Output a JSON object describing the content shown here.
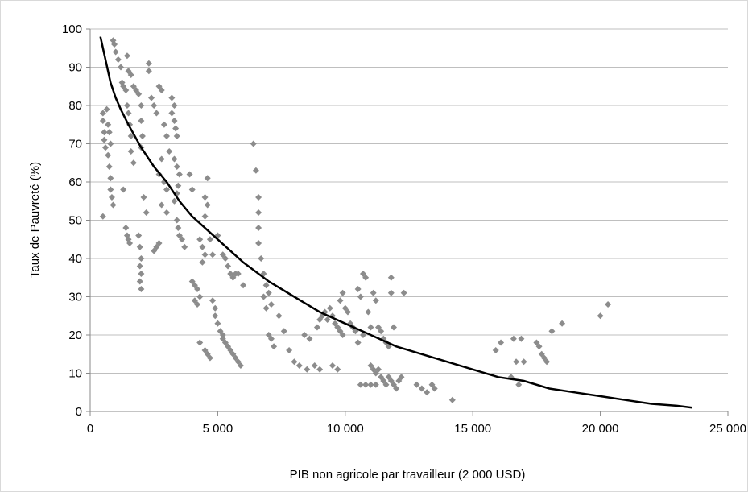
{
  "chart_data": {
    "type": "scatter",
    "title": "",
    "xlabel": "PIB  non agricole par travailleur (2 000 USD)",
    "ylabel": "Taux de Pauvreté (%)",
    "xlim": [
      0,
      25000
    ],
    "ylim": [
      0,
      100
    ],
    "x_ticks": [
      0,
      5000,
      10000,
      15000,
      20000,
      25000
    ],
    "x_tick_labels": [
      "0",
      "5 000",
      "10 000",
      "15 000",
      "20 000",
      "25 000"
    ],
    "y_ticks": [
      0,
      10,
      20,
      30,
      40,
      50,
      60,
      70,
      80,
      90,
      100
    ],
    "y_tick_labels": [
      "0",
      "10",
      "20",
      "30",
      "40",
      "50",
      "60",
      "70",
      "80",
      "90",
      "100"
    ],
    "grid": "horizontal",
    "legend": "none",
    "colors": {
      "points": "#8c8c8c",
      "trend": "#000000",
      "grid": "#bfbfbf",
      "axis": "#888888"
    },
    "series": [
      {
        "marker": "diamond",
        "points": [
          [
            500,
            78
          ],
          [
            500,
            76
          ],
          [
            550,
            73
          ],
          [
            550,
            71
          ],
          [
            600,
            69
          ],
          [
            500,
            51
          ],
          [
            650,
            79
          ],
          [
            700,
            75
          ],
          [
            700,
            67
          ],
          [
            750,
            64
          ],
          [
            800,
            61
          ],
          [
            800,
            58
          ],
          [
            850,
            56
          ],
          [
            900,
            54
          ],
          [
            750,
            73
          ],
          [
            800,
            70
          ],
          [
            900,
            97
          ],
          [
            950,
            96
          ],
          [
            1000,
            94
          ],
          [
            1100,
            92
          ],
          [
            1200,
            90
          ],
          [
            1250,
            86
          ],
          [
            1300,
            85
          ],
          [
            1400,
            84
          ],
          [
            1450,
            80
          ],
          [
            1500,
            78
          ],
          [
            1550,
            75
          ],
          [
            1600,
            72
          ],
          [
            1600,
            68
          ],
          [
            1700,
            65
          ],
          [
            1300,
            58
          ],
          [
            1400,
            48
          ],
          [
            1450,
            46
          ],
          [
            1500,
            45
          ],
          [
            1550,
            44
          ],
          [
            1450,
            93
          ],
          [
            1500,
            89
          ],
          [
            1600,
            88
          ],
          [
            1700,
            85
          ],
          [
            1800,
            84
          ],
          [
            1900,
            83
          ],
          [
            2000,
            80
          ],
          [
            2000,
            76
          ],
          [
            2050,
            72
          ],
          [
            2000,
            69
          ],
          [
            1900,
            46
          ],
          [
            1950,
            43
          ],
          [
            2000,
            40
          ],
          [
            1950,
            38
          ],
          [
            2000,
            36
          ],
          [
            1950,
            34
          ],
          [
            2000,
            32
          ],
          [
            2100,
            56
          ],
          [
            2200,
            52
          ],
          [
            2300,
            89
          ],
          [
            2300,
            91
          ],
          [
            2400,
            82
          ],
          [
            2500,
            80
          ],
          [
            2600,
            78
          ],
          [
            2700,
            85
          ],
          [
            2800,
            84
          ],
          [
            2900,
            75
          ],
          [
            3000,
            72
          ],
          [
            3100,
            68
          ],
          [
            2900,
            60
          ],
          [
            3000,
            58
          ],
          [
            2800,
            54
          ],
          [
            3000,
            52
          ],
          [
            2500,
            42
          ],
          [
            2600,
            43
          ],
          [
            2700,
            44
          ],
          [
            3200,
            82
          ],
          [
            3300,
            80
          ],
          [
            3200,
            78
          ],
          [
            3300,
            76
          ],
          [
            3350,
            74
          ],
          [
            3400,
            72
          ],
          [
            3300,
            66
          ],
          [
            3400,
            64
          ],
          [
            3500,
            62
          ],
          [
            3450,
            59
          ],
          [
            3400,
            57
          ],
          [
            3300,
            55
          ],
          [
            3400,
            50
          ],
          [
            3450,
            48
          ],
          [
            3500,
            46
          ],
          [
            3600,
            45
          ],
          [
            3700,
            43
          ],
          [
            2700,
            62
          ],
          [
            2800,
            66
          ],
          [
            3900,
            62
          ],
          [
            4000,
            58
          ],
          [
            4000,
            34
          ],
          [
            4100,
            33
          ],
          [
            4200,
            32
          ],
          [
            4300,
            30
          ],
          [
            4100,
            29
          ],
          [
            4200,
            28
          ],
          [
            4500,
            56
          ],
          [
            4600,
            54
          ],
          [
            4600,
            61
          ],
          [
            4500,
            51
          ],
          [
            4700,
            45
          ],
          [
            4800,
            41
          ],
          [
            4300,
            45
          ],
          [
            4400,
            43
          ],
          [
            4500,
            41
          ],
          [
            4400,
            39
          ],
          [
            4300,
            18
          ],
          [
            4500,
            16
          ],
          [
            4600,
            15
          ],
          [
            4700,
            14
          ],
          [
            4800,
            29
          ],
          [
            4900,
            27
          ],
          [
            4900,
            25
          ],
          [
            5000,
            23
          ],
          [
            5100,
            21
          ],
          [
            5200,
            20
          ],
          [
            5000,
            46
          ],
          [
            5200,
            41
          ],
          [
            5300,
            40
          ],
          [
            5400,
            38
          ],
          [
            5500,
            36
          ],
          [
            5600,
            35
          ],
          [
            5200,
            19
          ],
          [
            5300,
            18
          ],
          [
            5400,
            17
          ],
          [
            5500,
            16
          ],
          [
            5600,
            15
          ],
          [
            5700,
            14
          ],
          [
            5800,
            13
          ],
          [
            5900,
            12
          ],
          [
            5700,
            36
          ],
          [
            5800,
            36
          ],
          [
            6000,
            33
          ],
          [
            6400,
            70
          ],
          [
            6500,
            63
          ],
          [
            6600,
            56
          ],
          [
            6600,
            52
          ],
          [
            6600,
            48
          ],
          [
            6600,
            44
          ],
          [
            6700,
            40
          ],
          [
            6800,
            36
          ],
          [
            6900,
            33
          ],
          [
            7000,
            31
          ],
          [
            7100,
            28
          ],
          [
            6800,
            30
          ],
          [
            6900,
            27
          ],
          [
            7000,
            20
          ],
          [
            7100,
            19
          ],
          [
            7200,
            17
          ],
          [
            7400,
            25
          ],
          [
            7600,
            21
          ],
          [
            7800,
            16
          ],
          [
            8000,
            13
          ],
          [
            8200,
            12
          ],
          [
            8500,
            11
          ],
          [
            8800,
            12
          ],
          [
            9000,
            11
          ],
          [
            8400,
            20
          ],
          [
            8600,
            19
          ],
          [
            8900,
            22
          ],
          [
            9000,
            24
          ],
          [
            9100,
            25
          ],
          [
            9200,
            26
          ],
          [
            9300,
            24
          ],
          [
            9400,
            27
          ],
          [
            9500,
            25
          ],
          [
            9600,
            23
          ],
          [
            9700,
            22
          ],
          [
            9800,
            21
          ],
          [
            9900,
            20
          ],
          [
            9800,
            29
          ],
          [
            9900,
            31
          ],
          [
            10000,
            27
          ],
          [
            10100,
            26
          ],
          [
            10200,
            23
          ],
          [
            10300,
            22
          ],
          [
            10400,
            21
          ],
          [
            10500,
            32
          ],
          [
            10600,
            30
          ],
          [
            10700,
            36
          ],
          [
            10800,
            35
          ],
          [
            10900,
            26
          ],
          [
            11000,
            22
          ],
          [
            11100,
            31
          ],
          [
            11200,
            29
          ],
          [
            11300,
            22
          ],
          [
            11400,
            21
          ],
          [
            11500,
            19
          ],
          [
            11600,
            18
          ],
          [
            11700,
            17
          ],
          [
            11800,
            35
          ],
          [
            11800,
            31
          ],
          [
            11900,
            22
          ],
          [
            11000,
            12
          ],
          [
            11100,
            11
          ],
          [
            11200,
            10
          ],
          [
            11300,
            11
          ],
          [
            11400,
            9
          ],
          [
            11500,
            8
          ],
          [
            11600,
            7
          ],
          [
            11700,
            9
          ],
          [
            11800,
            8
          ],
          [
            11900,
            7
          ],
          [
            12000,
            6
          ],
          [
            12100,
            8
          ],
          [
            12200,
            9
          ],
          [
            10600,
            7
          ],
          [
            10800,
            7
          ],
          [
            11000,
            7
          ],
          [
            11200,
            7
          ],
          [
            10700,
            20
          ],
          [
            10500,
            18
          ],
          [
            12300,
            31
          ],
          [
            12800,
            7
          ],
          [
            13000,
            6
          ],
          [
            13200,
            5
          ],
          [
            13400,
            7
          ],
          [
            13500,
            6
          ],
          [
            14200,
            3
          ],
          [
            15900,
            16
          ],
          [
            16100,
            18
          ],
          [
            16500,
            9
          ],
          [
            16600,
            19
          ],
          [
            16700,
            13
          ],
          [
            16800,
            7
          ],
          [
            16900,
            19
          ],
          [
            17000,
            13
          ],
          [
            17500,
            18
          ],
          [
            17600,
            17
          ],
          [
            17700,
            15
          ],
          [
            17800,
            14
          ],
          [
            17900,
            13
          ],
          [
            18100,
            21
          ],
          [
            18500,
            23
          ],
          [
            20000,
            25
          ],
          [
            20300,
            28
          ],
          [
            9500,
            12
          ],
          [
            9700,
            11
          ]
        ]
      },
      {
        "name": "",
        "kind": "trend",
        "points": [
          [
            400,
            98
          ],
          [
            600,
            92
          ],
          [
            800,
            86
          ],
          [
            1000,
            82
          ],
          [
            1200,
            79
          ],
          [
            1500,
            75
          ],
          [
            2000,
            69
          ],
          [
            2500,
            64
          ],
          [
            3000,
            60
          ],
          [
            3500,
            55
          ],
          [
            4000,
            51
          ],
          [
            5000,
            45
          ],
          [
            6000,
            39
          ],
          [
            7000,
            34
          ],
          [
            8000,
            30
          ],
          [
            9000,
            26
          ],
          [
            10000,
            23
          ],
          [
            11000,
            20
          ],
          [
            12000,
            17
          ],
          [
            13000,
            15
          ],
          [
            14000,
            13
          ],
          [
            15000,
            11
          ],
          [
            16000,
            9
          ],
          [
            17000,
            8
          ],
          [
            18000,
            6
          ],
          [
            19000,
            5
          ],
          [
            20000,
            4
          ],
          [
            21000,
            3
          ],
          [
            22000,
            2
          ],
          [
            23000,
            1.5
          ],
          [
            23600,
            1
          ]
        ]
      }
    ]
  }
}
